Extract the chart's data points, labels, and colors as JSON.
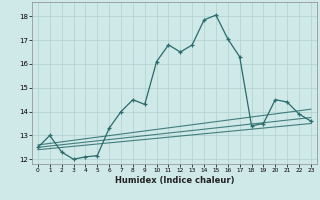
{
  "xlabel": "Humidex (Indice chaleur)",
  "background_color": "#cfe8e8",
  "grid_color": "#b0d0d0",
  "line_color": "#2a6b6b",
  "xlim": [
    -0.5,
    23.5
  ],
  "ylim": [
    11.8,
    18.6
  ],
  "yticks": [
    12,
    13,
    14,
    15,
    16,
    17,
    18
  ],
  "xticks": [
    0,
    1,
    2,
    3,
    4,
    5,
    6,
    7,
    8,
    9,
    10,
    11,
    12,
    13,
    14,
    15,
    16,
    17,
    18,
    19,
    20,
    21,
    22,
    23
  ],
  "main_line_x": [
    0,
    1,
    2,
    3,
    4,
    5,
    6,
    7,
    8,
    9,
    10,
    11,
    12,
    13,
    14,
    15,
    16,
    17,
    18,
    19,
    20,
    21,
    22,
    23
  ],
  "main_line_y": [
    12.5,
    13.0,
    12.3,
    12.0,
    12.1,
    12.15,
    13.3,
    14.0,
    14.5,
    14.3,
    16.1,
    16.8,
    16.5,
    16.8,
    17.85,
    18.05,
    17.05,
    16.3,
    13.4,
    13.5,
    14.5,
    14.4,
    13.9,
    13.6
  ],
  "line2_x": [
    0,
    23
  ],
  "line2_y": [
    12.6,
    14.1
  ],
  "line3_x": [
    0,
    23
  ],
  "line3_y": [
    12.5,
    13.75
  ],
  "line4_x": [
    0,
    23
  ],
  "line4_y": [
    12.4,
    13.5
  ]
}
